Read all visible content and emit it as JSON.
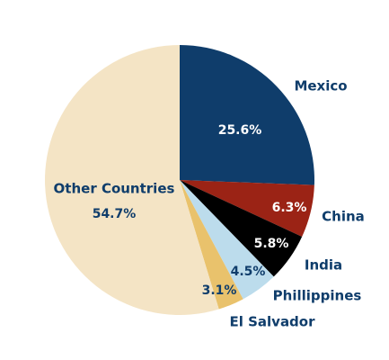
{
  "chart_data": {
    "type": "pie",
    "categories": [
      "Mexico",
      "China",
      "India",
      "Phillippines",
      "El Salvador",
      "Other Countries"
    ],
    "values": [
      25.6,
      6.3,
      5.8,
      4.5,
      3.1,
      54.7
    ],
    "value_labels": [
      "25.6%",
      "6.3%",
      "5.8%",
      "4.5%",
      "3.1%",
      "54.7%"
    ],
    "colors": [
      "#0f3d6b",
      "#9b2315",
      "#000000",
      "#bcdcec",
      "#e9c26c",
      "#f4e4c5"
    ]
  }
}
